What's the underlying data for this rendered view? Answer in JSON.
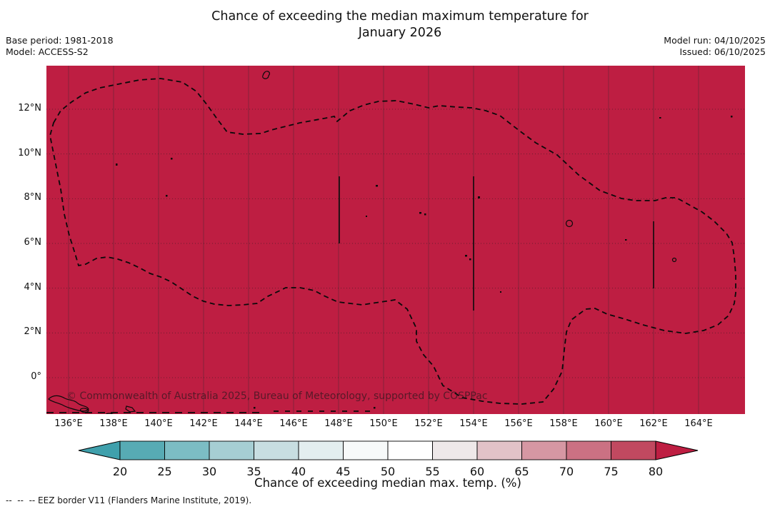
{
  "title": {
    "line1": "Chance of exceeding the median maximum temperature for",
    "line2": "January 2026"
  },
  "meta": {
    "base_period": "Base period: 1981-2018",
    "model": "Model: ACCESS-S2",
    "model_run": "Model run: 04/10/2025",
    "issued": "Issued: 06/10/2025"
  },
  "map": {
    "fill_color": "#be1e42",
    "x_ticks": [
      "136°E",
      "138°E",
      "140°E",
      "142°E",
      "144°E",
      "146°E",
      "148°E",
      "150°E",
      "152°E",
      "154°E",
      "156°E",
      "158°E",
      "160°E",
      "162°E",
      "164°E"
    ],
    "y_ticks": [
      "12°N",
      "10°N",
      "8°N",
      "6°N",
      "4°N",
      "2°N",
      "0°"
    ],
    "watermark": "© Commonwealth of Australia 2025, Bureau of Meteorology, supported by COSPPac"
  },
  "colorbar": {
    "label": "Chance of exceeding median max. temp. (%)",
    "ticks": [
      "20",
      "25",
      "30",
      "35",
      "40",
      "45",
      "50",
      "55",
      "60",
      "65",
      "70",
      "75",
      "80"
    ],
    "segment_colors": [
      "#57abb4",
      "#7cbdc4",
      "#a6ced3",
      "#c8dee1",
      "#e3eeef",
      "#f7fafa",
      "#ffffff",
      "#eee8e9",
      "#e2c2c8",
      "#d697a3",
      "#cb7183",
      "#c14960"
    ],
    "under_color": "#3fa0ac",
    "over_color": "#be1e42"
  },
  "footnote": "--  --  -- EEZ border V11 (Flanders Marine Institute, 2019).",
  "chart_data": {
    "type": "heatmap",
    "title": "Chance of exceeding the median maximum temperature for January 2026",
    "subtitle_meta": [
      "Base period: 1981-2018",
      "Model: ACCESS-S2",
      "Model run: 04/10/2025",
      "Issued: 06/10/2025"
    ],
    "x_axis": {
      "ticks": [
        "136°E",
        "138°E",
        "140°E",
        "142°E",
        "144°E",
        "146°E",
        "148°E",
        "150°E",
        "152°E",
        "154°E",
        "156°E",
        "158°E",
        "160°E",
        "162°E",
        "164°E"
      ],
      "range": [
        "135°E",
        "165°E"
      ]
    },
    "y_axis": {
      "ticks": [
        "0°",
        "2°N",
        "4°N",
        "6°N",
        "8°N",
        "10°N",
        "12°N"
      ],
      "range": [
        "1.6°S",
        "14°N"
      ]
    },
    "colorbar": {
      "label": "Chance of exceeding median max. temp. (%)",
      "ticks": [
        20,
        25,
        30,
        35,
        40,
        45,
        50,
        55,
        60,
        65,
        70,
        75,
        80
      ],
      "extend": "both",
      "low_color_meaning": "low chance (teal)",
      "high_color_meaning": "high chance (crimson)"
    },
    "values_summary": "The entire mapped domain (EEZ region spanning roughly 136°E-164°E, 0°-13.5°N, outlined by the dashed EEZ border) is uniformly shaded in the >80% class (dark crimson). Internal meridional EEZ boundaries drawn at 148°E (6-9°N), 154°E (3-9°N) and 162°E (4-7°N).",
    "series": [
      {
        "name": "Chance of exceeding median max. temp. (%)",
        "region": "entire mapped EEZ domain",
        "value": ">80"
      }
    ],
    "grid": true,
    "legend_position": "bottom colorbar"
  }
}
